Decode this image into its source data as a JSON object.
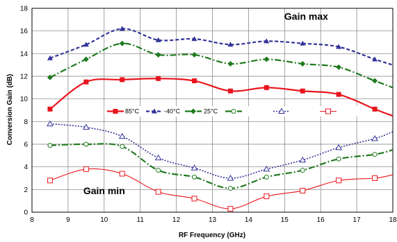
{
  "chart_data": {
    "type": "line",
    "xlabel": "RF Frequency (GHz)",
    "ylabel": "Conversion Gain  (dB)",
    "xlim": [
      8,
      18
    ],
    "ylim": [
      0,
      18
    ],
    "xticks": [
      8,
      9,
      10,
      11,
      12,
      13,
      14,
      15,
      16,
      17,
      18
    ],
    "yticks": [
      0,
      2,
      4,
      6,
      8,
      10,
      12,
      14,
      16,
      18
    ],
    "grid": true,
    "legend_position": "center",
    "annotations": [
      {
        "text": "Gain max",
        "x": 15.6,
        "y": 17.0
      },
      {
        "text": "Gain min",
        "x": 10.0,
        "y": 1.6
      }
    ],
    "x": [
      8.5,
      9.5,
      10.5,
      11.5,
      12.5,
      13.5,
      14.5,
      15.5,
      16.5,
      17.5
    ],
    "series": [
      {
        "name": "85°C",
        "group": "max",
        "color": "#e8141c",
        "marker": "square-filled",
        "dash": "solid",
        "values": [
          9.1,
          11.5,
          11.7,
          11.8,
          11.6,
          10.7,
          11.0,
          10.7,
          10.4,
          9.1
        ],
        "endpoint": [
          18,
          8.5
        ]
      },
      {
        "name": "-40°C",
        "group": "max",
        "color": "#33339a",
        "marker": "triangle-filled",
        "dash": "dashed",
        "values": [
          13.6,
          14.8,
          16.2,
          15.2,
          15.3,
          14.8,
          15.1,
          14.9,
          14.6,
          13.5
        ],
        "endpoint": [
          18,
          13.0
        ]
      },
      {
        "name": "25°C",
        "group": "max",
        "color": "#1f7a1f",
        "marker": "diamond-filled",
        "dash": "dashdot",
        "values": [
          11.9,
          13.5,
          14.9,
          13.9,
          13.9,
          13.1,
          13.5,
          13.1,
          12.8,
          11.6
        ],
        "endpoint": [
          18,
          11.0
        ]
      },
      {
        "name": "",
        "group": "min",
        "color": "#1f7a1f",
        "marker": "circle-open",
        "dash": "dashdot",
        "values": [
          5.9,
          6.0,
          5.8,
          3.7,
          3.1,
          2.1,
          3.1,
          3.7,
          4.7,
          5.1
        ],
        "endpoint": [
          18,
          5.5
        ]
      },
      {
        "name": "",
        "group": "min",
        "color": "#33339a",
        "marker": "triangle-open",
        "dash": "dotted",
        "values": [
          7.8,
          7.5,
          6.7,
          4.8,
          3.9,
          3.0,
          3.8,
          4.6,
          5.7,
          6.5
        ],
        "endpoint": [
          18,
          7.1
        ]
      },
      {
        "name": "",
        "group": "min",
        "color": "#e8141c",
        "marker": "square-open",
        "dash": "thin",
        "values": [
          2.8,
          3.8,
          3.4,
          1.8,
          1.2,
          0.3,
          1.4,
          1.9,
          2.8,
          3.0
        ],
        "endpoint": [
          18,
          3.3
        ]
      }
    ]
  }
}
